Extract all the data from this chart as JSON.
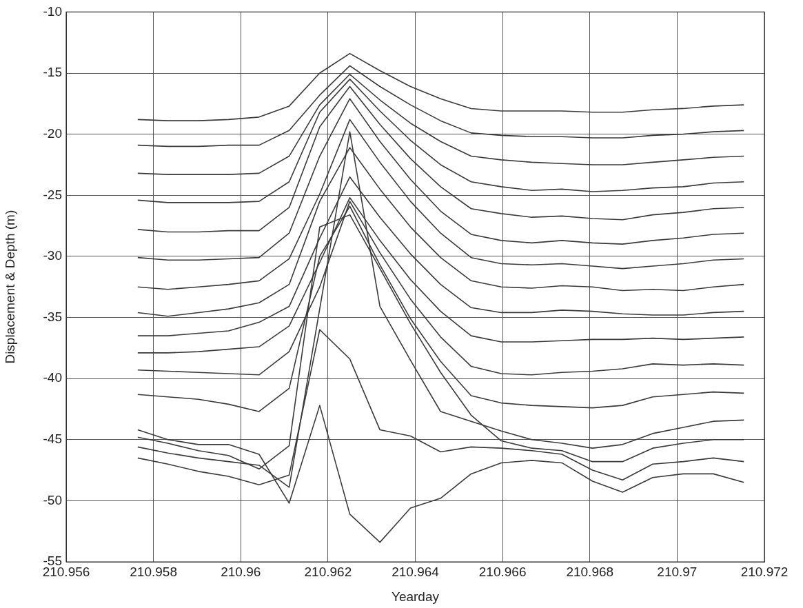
{
  "chart_data": {
    "type": "line",
    "xlabel": "Yearday",
    "ylabel": "Displacement & Depth (m)",
    "x": [
      210.95764,
      210.95833,
      210.95903,
      210.95972,
      210.96042,
      210.96111,
      210.96181,
      210.9625,
      210.96319,
      210.96389,
      210.96458,
      210.96528,
      210.96597,
      210.96667,
      210.96736,
      210.96806,
      210.96875,
      210.96944,
      210.97014,
      210.97083,
      210.97153
    ],
    "xlim": [
      210.956,
      210.972
    ],
    "xticks": [
      210.956,
      210.958,
      210.96,
      210.962,
      210.964,
      210.966,
      210.968,
      210.97,
      210.972
    ],
    "ylim": [
      -55,
      -10
    ],
    "yticks": [
      -55,
      -50,
      -45,
      -40,
      -35,
      -30,
      -25,
      -20,
      -15,
      -10
    ],
    "grid": true,
    "marker": "none",
    "line_style": "solid",
    "series": [
      {
        "color": "#3a3a3a",
        "values": [
          -18.8,
          -18.9,
          -18.9,
          -18.8,
          -18.6,
          -17.7,
          -15.0,
          -13.4,
          -14.8,
          -16.1,
          -17.1,
          -17.9,
          -18.1,
          -18.1,
          -18.1,
          -18.2,
          -18.2,
          -18.0,
          -17.9,
          -17.7,
          -17.6
        ]
      },
      {
        "color": "#3a3a3a",
        "values": [
          -20.9,
          -21.0,
          -21.0,
          -20.9,
          -20.9,
          -19.7,
          -16.8,
          -14.4,
          -16.1,
          -17.6,
          -18.9,
          -19.9,
          -20.1,
          -20.2,
          -20.2,
          -20.3,
          -20.3,
          -20.1,
          -20.0,
          -19.8,
          -19.7
        ]
      },
      {
        "color": "#3a3a3a",
        "values": [
          -23.2,
          -23.3,
          -23.3,
          -23.3,
          -23.2,
          -21.8,
          -17.6,
          -15.1,
          -17.2,
          -19.1,
          -20.6,
          -21.8,
          -22.1,
          -22.3,
          -22.4,
          -22.5,
          -22.5,
          -22.3,
          -22.1,
          -21.9,
          -21.8
        ]
      },
      {
        "color": "#3a3a3a",
        "values": [
          -25.4,
          -25.6,
          -25.6,
          -25.6,
          -25.5,
          -23.9,
          -18.2,
          -15.5,
          -18.1,
          -20.5,
          -22.5,
          -23.9,
          -24.3,
          -24.6,
          -24.5,
          -24.7,
          -24.6,
          -24.4,
          -24.3,
          -24.0,
          -23.9
        ]
      },
      {
        "color": "#3a3a3a",
        "values": [
          -27.8,
          -28.0,
          -28.0,
          -27.9,
          -27.9,
          -26.0,
          -19.4,
          -16.1,
          -19.2,
          -22.0,
          -24.3,
          -26.1,
          -26.5,
          -26.8,
          -26.7,
          -26.9,
          -27.0,
          -26.6,
          -26.4,
          -26.1,
          -26.0
        ]
      },
      {
        "color": "#3a3a3a",
        "values": [
          -30.1,
          -30.3,
          -30.3,
          -30.2,
          -30.1,
          -28.1,
          -21.8,
          -17.1,
          -20.6,
          -23.7,
          -26.3,
          -28.2,
          -28.7,
          -28.9,
          -28.7,
          -28.9,
          -29.0,
          -28.7,
          -28.5,
          -28.2,
          -28.1
        ]
      },
      {
        "color": "#3a3a3a",
        "values": [
          -32.5,
          -32.7,
          -32.5,
          -32.3,
          -32.0,
          -30.2,
          -24.9,
          -18.8,
          -22.3,
          -25.5,
          -28.1,
          -30.1,
          -30.6,
          -30.7,
          -30.6,
          -30.8,
          -31.0,
          -30.8,
          -30.6,
          -30.3,
          -30.2
        ]
      },
      {
        "color": "#3a3a3a",
        "values": [
          -34.6,
          -34.9,
          -34.6,
          -34.3,
          -33.8,
          -32.3,
          -25.5,
          -21.1,
          -24.5,
          -27.6,
          -30.1,
          -32.0,
          -32.5,
          -32.6,
          -32.4,
          -32.5,
          -32.8,
          -32.7,
          -32.8,
          -32.5,
          -32.3
        ]
      },
      {
        "color": "#3a3a3a",
        "values": [
          -36.5,
          -36.5,
          -36.3,
          -36.1,
          -35.4,
          -34.1,
          -28.5,
          -23.5,
          -26.8,
          -29.8,
          -32.3,
          -34.2,
          -34.6,
          -34.6,
          -34.4,
          -34.5,
          -34.7,
          -34.8,
          -34.8,
          -34.6,
          -34.5
        ]
      },
      {
        "color": "#3a3a3a",
        "values": [
          -37.9,
          -37.9,
          -37.8,
          -37.6,
          -37.4,
          -35.7,
          -30.5,
          -25.2,
          -28.7,
          -31.9,
          -34.5,
          -36.5,
          -37.0,
          -37.0,
          -36.9,
          -36.8,
          -36.8,
          -36.7,
          -36.8,
          -36.7,
          -36.6
        ]
      },
      {
        "color": "#3a3a3a",
        "values": [
          -39.3,
          -39.4,
          -39.5,
          -39.6,
          -39.7,
          -37.8,
          -32.5,
          -25.5,
          -29.7,
          -33.5,
          -36.6,
          -39.0,
          -39.6,
          -39.7,
          -39.5,
          -39.4,
          -39.2,
          -38.8,
          -38.9,
          -38.8,
          -38.9
        ]
      },
      {
        "color": "#3a3a3a",
        "values": [
          -41.3,
          -41.5,
          -41.7,
          -42.1,
          -42.7,
          -40.8,
          -30.0,
          -25.9,
          -30.7,
          -35.1,
          -38.6,
          -41.4,
          -42.0,
          -42.2,
          -42.3,
          -42.4,
          -42.2,
          -41.5,
          -41.3,
          -41.1,
          -41.2
        ]
      },
      {
        "color": "#3a3a3a",
        "values": [
          -45.6,
          -46.1,
          -46.5,
          -46.8,
          -47.1,
          -48.9,
          -34.3,
          -19.8,
          -34.1,
          -38.5,
          -42.7,
          -43.5,
          -44.3,
          -45.0,
          -45.3,
          -45.7,
          -45.4,
          -44.5,
          -44.0,
          -43.5,
          -43.4
        ]
      },
      {
        "color": "#3a3a3a",
        "values": [
          -44.8,
          -45.3,
          -45.9,
          -46.3,
          -47.4,
          -45.5,
          -27.6,
          -26.6,
          -31.0,
          -35.5,
          -39.5,
          -43.0,
          -45.1,
          -45.7,
          -45.9,
          -46.8,
          -46.8,
          -45.7,
          -45.3,
          -45.0,
          -45.0
        ]
      },
      {
        "color": "#3a3a3a",
        "values": [
          -46.5,
          -47.0,
          -47.6,
          -48.0,
          -48.7,
          -47.9,
          -36.0,
          -38.4,
          -44.2,
          -44.7,
          -46.0,
          -45.6,
          -45.7,
          -45.9,
          -46.2,
          -47.5,
          -48.3,
          -47.0,
          -46.8,
          -46.5,
          -46.8
        ]
      },
      {
        "color": "#3a3a3a",
        "values": [
          -44.2,
          -45.0,
          -45.4,
          -45.4,
          -46.2,
          -50.2,
          -42.2,
          -51.1,
          -53.4,
          -50.6,
          -49.8,
          -47.8,
          -46.9,
          -46.7,
          -46.9,
          -48.4,
          -49.3,
          -48.1,
          -47.8,
          -47.8,
          -48.5
        ]
      }
    ]
  }
}
